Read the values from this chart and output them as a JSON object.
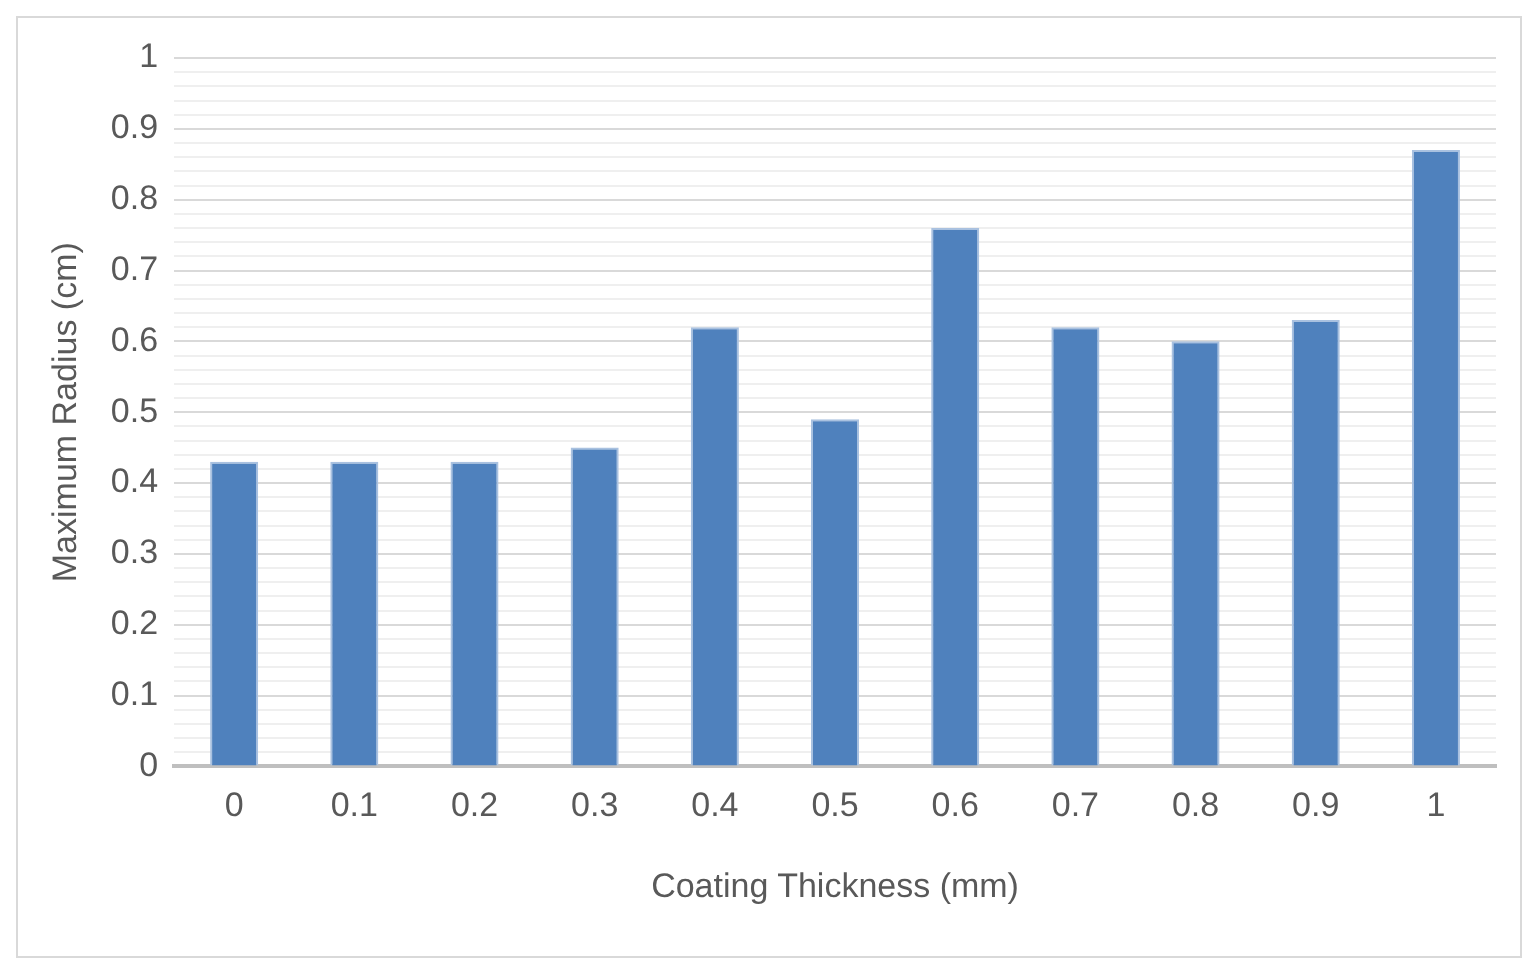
{
  "chart_data": {
    "type": "bar",
    "xlabel": "Coating Thickness (mm)",
    "ylabel": "Maximum Radius (cm)",
    "categories": [
      "0",
      "0.1",
      "0.2",
      "0.3",
      "0.4",
      "0.5",
      "0.6",
      "0.7",
      "0.8",
      "0.9",
      "1"
    ],
    "values": [
      0.43,
      0.43,
      0.43,
      0.45,
      0.62,
      0.49,
      0.76,
      0.62,
      0.6,
      0.63,
      0.87
    ],
    "color": "#4f81bd",
    "ylim": [
      0,
      1
    ],
    "yticks": [
      0,
      {
        "value": 0.02,
        "label": null
      },
      {
        "value": 0.04,
        "label": null
      },
      {
        "value": 0.06,
        "label": null
      },
      {
        "value": 0.08,
        "label": null
      },
      0.1,
      {
        "value": 0.12,
        "label": null
      },
      {
        "value": 0.14,
        "label": null
      },
      {
        "value": 0.16,
        "label": null
      },
      {
        "value": 0.18,
        "label": null
      },
      0.2,
      {
        "value": 0.22,
        "label": null
      },
      {
        "value": 0.24,
        "label": null
      },
      {
        "value": 0.26,
        "label": null
      },
      {
        "value": 0.28,
        "label": null
      },
      0.3,
      {
        "value": 0.32,
        "label": null
      },
      {
        "value": 0.34,
        "label": null
      },
      {
        "value": 0.36,
        "label": null
      },
      {
        "value": 0.38,
        "label": null
      },
      0.4,
      {
        "value": 0.42,
        "label": null
      },
      {
        "value": 0.44,
        "label": null
      },
      {
        "value": 0.46,
        "label": null
      },
      {
        "value": 0.48,
        "label": null
      },
      0.5,
      {
        "value": 0.52,
        "label": null
      },
      {
        "value": 0.54,
        "label": null
      },
      {
        "value": 0.56,
        "label": null
      },
      {
        "value": 0.58,
        "label": null
      },
      0.6,
      {
        "value": 0.62,
        "label": null
      },
      {
        "value": 0.64,
        "label": null
      },
      {
        "value": 0.66,
        "label": null
      },
      {
        "value": 0.68,
        "label": null
      },
      0.7,
      {
        "value": 0.72,
        "label": null
      },
      {
        "value": 0.74,
        "label": null
      },
      {
        "value": 0.76,
        "label": null
      },
      {
        "value": 0.78,
        "label": null
      },
      0.8,
      {
        "value": 0.82,
        "label": null
      },
      {
        "value": 0.84,
        "label": null
      },
      {
        "value": 0.86,
        "label": null
      },
      {
        "value": 0.88,
        "label": null
      },
      0.9,
      {
        "value": 0.92,
        "label": null
      },
      {
        "value": 0.94,
        "label": null
      },
      {
        "value": 0.96,
        "label": null
      },
      {
        "value": 0.98,
        "label": null
      },
      1
    ],
    "grid": "y",
    "legend": false
  }
}
